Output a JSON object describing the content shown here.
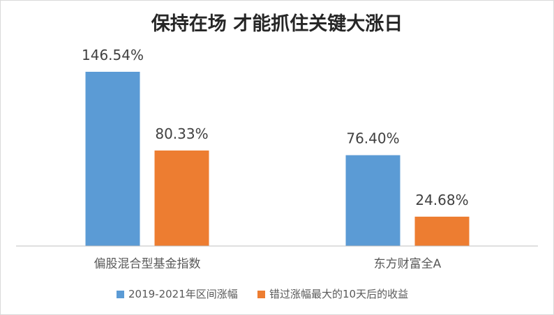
{
  "chart_data": {
    "type": "bar",
    "title": "保持在场 才能抓住关键大涨日",
    "categories": [
      "偏股混合型基金指数",
      "东方财富全A"
    ],
    "series": [
      {
        "name": "2019-2021年区间涨幅",
        "values": [
          146.54,
          76.4
        ],
        "labels": [
          "146.54%",
          "76.40%"
        ],
        "color": "#5b9bd5"
      },
      {
        "name": "错过涨幅最大的10天后的收益",
        "values": [
          80.33,
          24.68
        ],
        "labels": [
          "80.33%",
          "24.68%"
        ],
        "color": "#ed7d31"
      }
    ],
    "xlabel": "",
    "ylabel": "",
    "ylim": [
      0,
      146.54
    ],
    "grid": false,
    "legend": "bottom"
  },
  "colors": {
    "axis": "#bfbfbf",
    "title": "#262626",
    "data_label": "#404040",
    "category_label": "#595959"
  }
}
